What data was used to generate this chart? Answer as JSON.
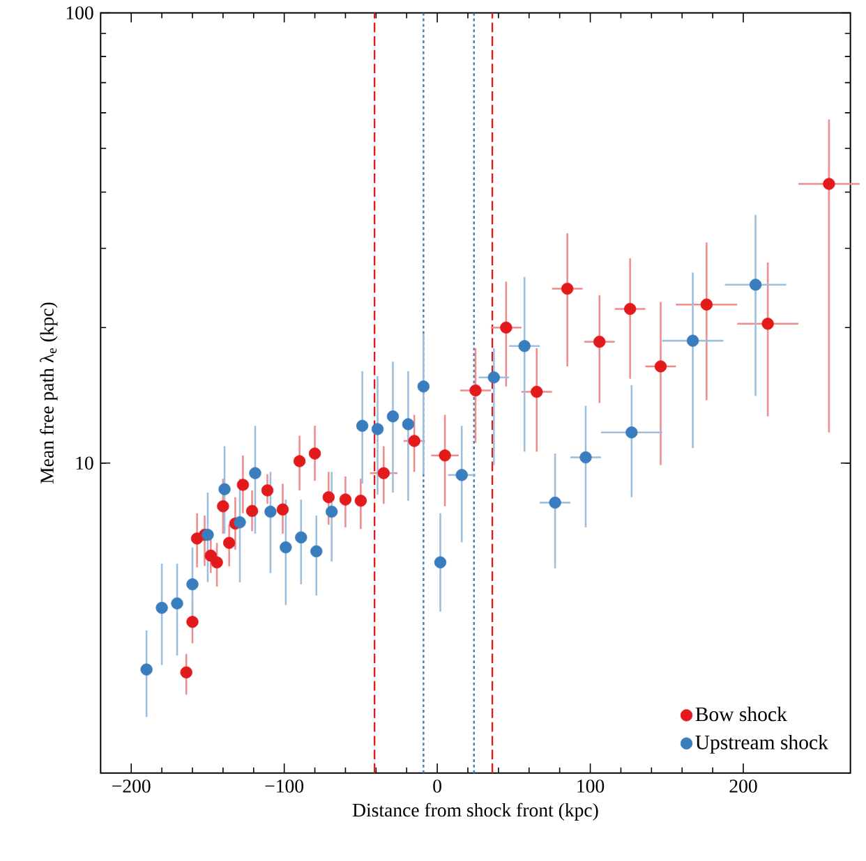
{
  "chart_data": {
    "type": "scatter",
    "xlabel": "Distance from shock front (kpc)",
    "ylabel": "Mean free path λ$_{e}$ (kpc)",
    "xlim": [
      -220,
      270
    ],
    "ylim": [
      2.05,
      100
    ],
    "log": "y",
    "xticks": [
      {
        "value": -200,
        "label": "−200"
      },
      {
        "value": -100,
        "label": "−100"
      },
      0,
      100,
      200
    ],
    "yticks": [
      10,
      100
    ],
    "marker": "circle",
    "legend": "bottom right",
    "grid": false,
    "series": [
      {
        "name": "Bow shock",
        "color": "#e31a1c",
        "x": [
          -164,
          -160,
          -157,
          -152,
          -148,
          -144,
          -140,
          -136,
          -132,
          -127,
          -121,
          -111,
          -101,
          -90,
          -80,
          -71,
          -60,
          -50,
          -35,
          -15,
          5,
          25,
          45,
          65,
          85,
          106,
          126,
          146,
          176,
          216,
          256
        ],
        "values": [
          3.43,
          4.44,
          6.8,
          6.93,
          6.23,
          6.02,
          8.02,
          6.65,
          7.34,
          8.95,
          7.83,
          8.7,
          7.89,
          10.1,
          10.5,
          8.4,
          8.3,
          8.25,
          9.5,
          11.2,
          10.4,
          14.5,
          20.0,
          14.4,
          24.4,
          18.6,
          22.0,
          16.4,
          22.5,
          20.4,
          41.7
        ],
        "errors": [
          [
            3.06,
            3.77
          ],
          [
            3.98,
            4.95
          ],
          [
            5.87,
            7.74
          ],
          [
            5.91,
            7.65
          ],
          [
            5.7,
            6.8
          ],
          [
            5.32,
            6.65
          ],
          [
            6.97,
            9.23
          ],
          [
            5.9,
            7.3
          ],
          [
            6.42,
            8.4
          ],
          [
            7.74,
            10.4
          ],
          [
            7.06,
            8.7
          ],
          [
            8.12,
            9.45
          ],
          [
            6.97,
            9.0
          ],
          [
            8.7,
            11.5
          ],
          [
            9.13,
            12.1
          ],
          [
            7.3,
            9.56
          ],
          [
            7.2,
            9.34
          ],
          [
            7.14,
            9.23
          ],
          [
            8.12,
            10.9
          ],
          [
            9.56,
            12.8
          ],
          [
            8.02,
            12.8
          ],
          [
            11.1,
            18.0
          ],
          [
            14.8,
            25.3
          ],
          [
            10.6,
            18.0
          ],
          [
            16.4,
            32.4
          ],
          [
            13.6,
            23.6
          ],
          [
            15.4,
            28.5
          ],
          [
            9.9,
            22.8
          ],
          [
            13.8,
            30.9
          ],
          [
            12.7,
            27.9
          ],
          [
            11.7,
            58
          ]
        ],
        "xerrors": [
          null,
          null,
          null,
          null,
          null,
          null,
          null,
          null,
          null,
          null,
          null,
          null,
          null,
          null,
          null,
          null,
          null,
          null,
          9,
          7,
          9,
          10,
          10,
          10,
          10,
          10,
          10,
          10,
          20,
          20,
          20
        ]
      },
      {
        "name": "Upstream shock",
        "color": "#3a7dbf",
        "x": [
          -190,
          -180,
          -170,
          -160,
          -150,
          -139,
          -129,
          -119,
          -109,
          -99,
          -89,
          -79,
          -69,
          -49,
          -39,
          -29,
          -19,
          -9,
          2,
          16,
          37,
          57,
          77,
          97,
          127,
          167,
          208
        ],
        "values": [
          3.48,
          4.77,
          4.88,
          5.38,
          6.93,
          8.75,
          7.39,
          9.5,
          7.8,
          6.5,
          6.84,
          6.37,
          7.8,
          12.1,
          11.9,
          12.7,
          12.2,
          14.8,
          6.02,
          9.41,
          15.5,
          18.2,
          8.17,
          10.3,
          11.7,
          18.7,
          24.9
        ],
        "errors": [
          [
            2.73,
            4.25
          ],
          [
            3.56,
            5.98
          ],
          [
            3.74,
            5.98
          ],
          [
            4.46,
            6.5
          ],
          [
            5.44,
            8.6
          ],
          [
            6.97,
            10.9
          ],
          [
            5.44,
            9.23
          ],
          [
            6.97,
            12.1
          ],
          [
            5.7,
            9.56
          ],
          [
            4.84,
            8.3
          ],
          [
            5.38,
            8.3
          ],
          [
            5.08,
            7.65
          ],
          [
            6.05,
            9.56
          ],
          [
            9.0,
            16.0
          ],
          [
            8.5,
            15.6
          ],
          [
            8.6,
            16.8
          ],
          [
            8.25,
            16.0
          ],
          [
            9.45,
            19.4
          ],
          [
            4.68,
            7.74
          ],
          [
            6.67,
            12.1
          ],
          [
            9.9,
            18.0
          ],
          [
            10.6,
            25.9
          ],
          [
            5.84,
            10.5
          ],
          [
            7.2,
            13.4
          ],
          [
            8.4,
            14.9
          ],
          [
            10.8,
            26.5
          ],
          [
            14.1,
            35.6
          ]
        ],
        "xerrors": [
          null,
          null,
          null,
          null,
          null,
          null,
          null,
          null,
          null,
          null,
          null,
          null,
          null,
          null,
          null,
          null,
          null,
          null,
          null,
          9,
          10,
          10,
          10,
          10,
          20,
          20,
          20
        ]
      }
    ],
    "ref_lines": [
      {
        "axis": "x",
        "value": -41,
        "color": "#e31a1c",
        "line_style": "dashed"
      },
      {
        "axis": "x",
        "value": 36,
        "color": "#e31a1c",
        "line_style": "dashed"
      },
      {
        "axis": "x",
        "value": -9,
        "color": "#3a7dbf",
        "line_style": "dotted"
      },
      {
        "axis": "x",
        "value": 24,
        "color": "#3a7dbf",
        "line_style": "dotted"
      }
    ]
  }
}
